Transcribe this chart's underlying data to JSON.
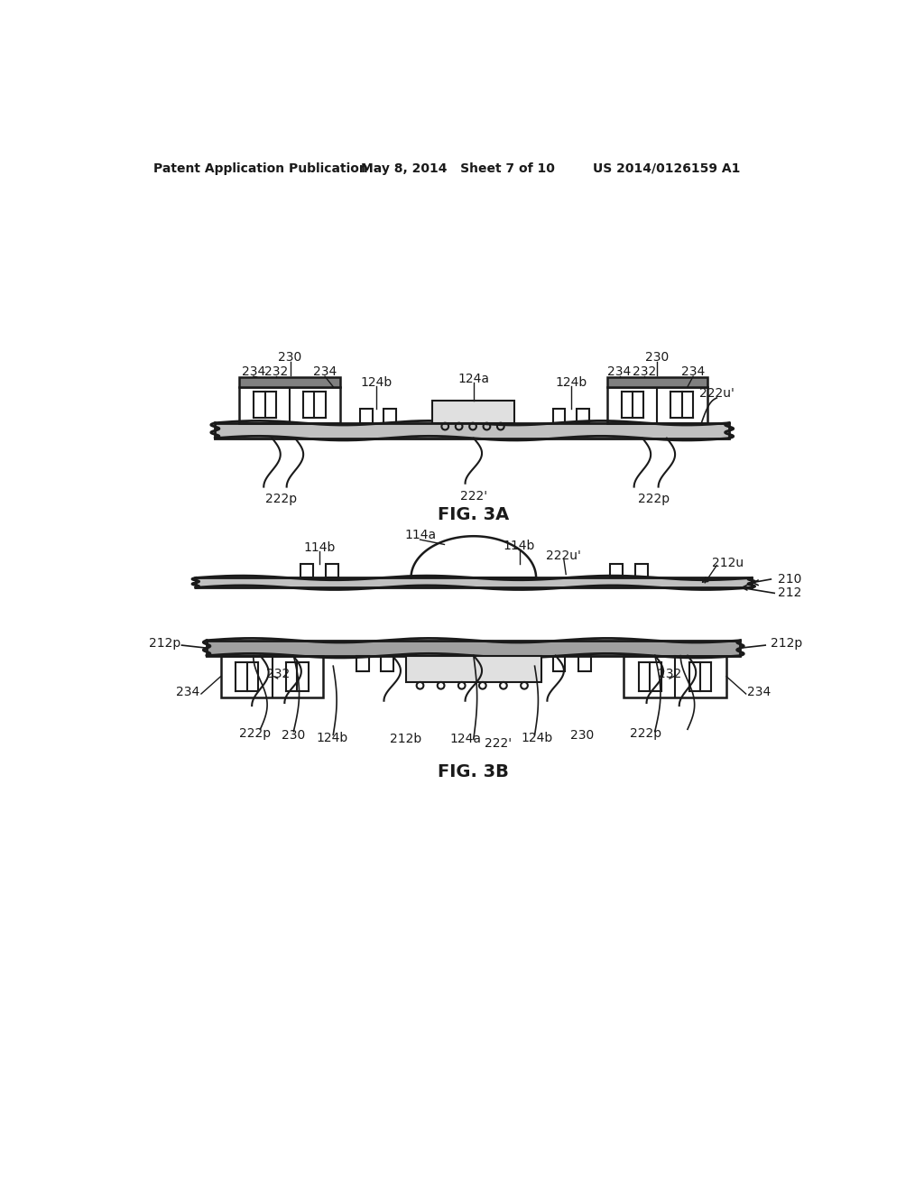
{
  "bg_color": "#ffffff",
  "line_color": "#1a1a1a",
  "header_left": "Patent Application Publication",
  "header_mid": "May 8, 2014   Sheet 7 of 10",
  "header_right": "US 2014/0126159 A1",
  "fig3a_label": "FIG. 3A",
  "fig3b_label": "FIG. 3B"
}
